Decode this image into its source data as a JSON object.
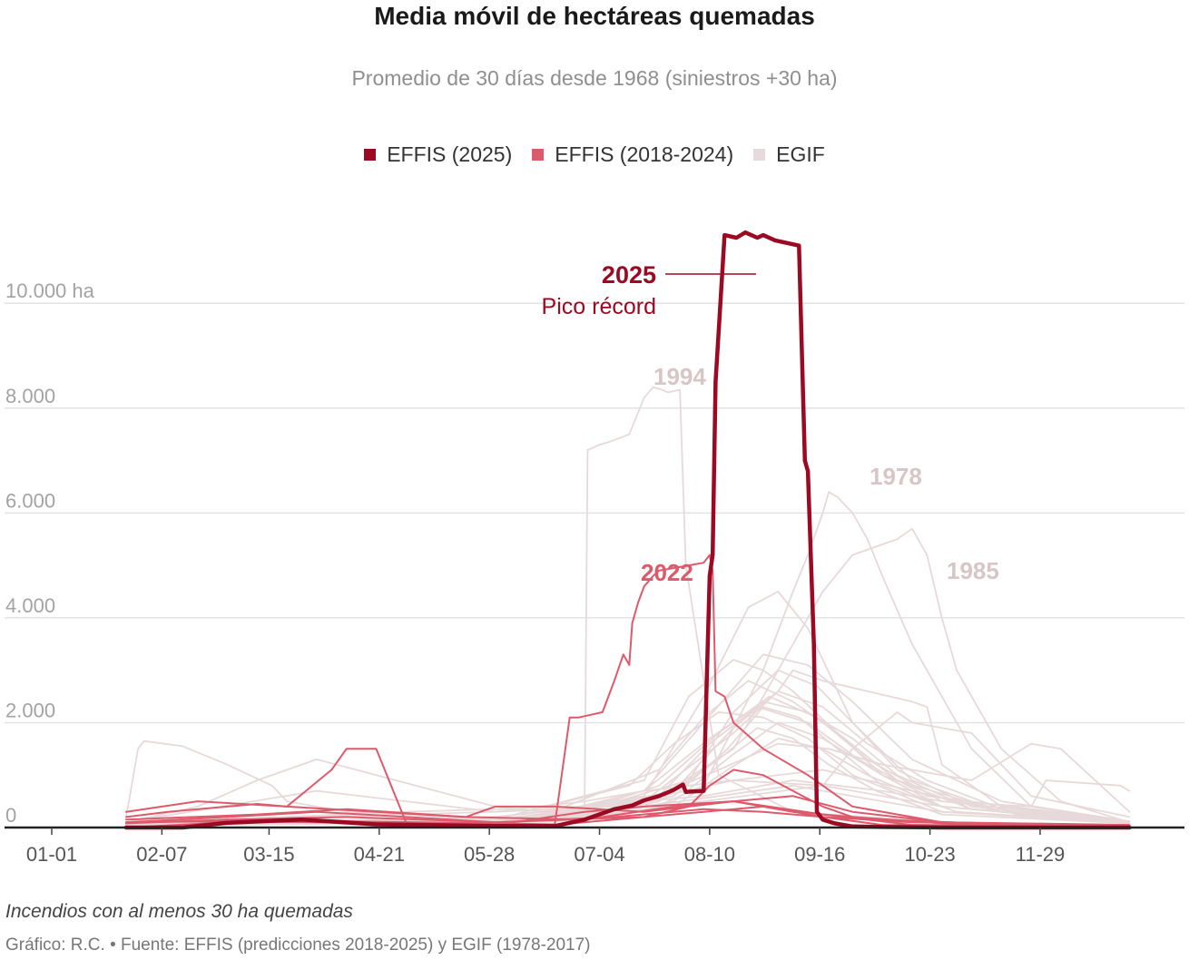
{
  "title": "Media móvil de hectáreas quemadas",
  "subtitle": "Promedio de 30 días desde 1968 (siniestros +30 ha)",
  "legend": [
    {
      "label": "EFFIS (2025)",
      "color": "#9b0a22"
    },
    {
      "label": "EFFIS (2018-2024)",
      "color": "#dd5a6c"
    },
    {
      "label": "EGIF",
      "color": "#e6dada"
    }
  ],
  "footnote": "Incendios con al menos 30 ha quemadas",
  "credit": "Gráfico: R.C. • Fuente: EFFIS (predicciones 2018-2025) y EGIF (1978-2017)",
  "chart_data": {
    "type": "line",
    "x_unit": "day of year",
    "xlim": [
      1,
      366
    ],
    "ylim": [
      0,
      11700
    ],
    "y_ticks": [
      0,
      2000,
      4000,
      6000,
      8000,
      10000
    ],
    "y_tick_labels": [
      "0",
      "2.000",
      "4.000",
      "6.000",
      "8.000",
      "10.000 ha"
    ],
    "x_ticks": [
      1,
      38,
      74,
      111,
      148,
      185,
      222,
      259,
      296,
      333
    ],
    "x_tick_labels": [
      "01-01",
      "02-07",
      "03-15",
      "04-21",
      "05-28",
      "07-04",
      "08-10",
      "09-16",
      "10-23",
      "11-29"
    ],
    "annotations": [
      {
        "key": "a2025",
        "label": "2025",
        "sublabel": "Pico récord",
        "x": 215,
        "y": 11050,
        "color": "#9b0a22"
      },
      {
        "key": "a1994",
        "label": "1994",
        "x": 196,
        "y": 8650,
        "color": "#d8c6c6"
      },
      {
        "key": "a2022",
        "label": "2022",
        "x": 196,
        "y": 4800,
        "color": "#dd5a6c"
      },
      {
        "key": "a1978",
        "label": "1978",
        "x": 268,
        "y": 6700,
        "color": "#d8c6c6"
      },
      {
        "key": "a1985",
        "label": "1985",
        "x": 294,
        "y": 4700,
        "color": "#d8c6c6"
      }
    ],
    "series": [
      {
        "name": "2025",
        "group": "EFFIS (2025)",
        "emphasis": "primary",
        "x": [
          26,
          45,
          60,
          85,
          110,
          150,
          170,
          180,
          190,
          196,
          200,
          205,
          210,
          213,
          214,
          220,
          222,
          223,
          224,
          227,
          231,
          234,
          238,
          240,
          244,
          248,
          252,
          253,
          254,
          255,
          257,
          258,
          260,
          264,
          270,
          280,
          300,
          363
        ],
        "y": [
          0,
          0,
          90,
          150,
          60,
          30,
          30,
          150,
          350,
          420,
          520,
          600,
          720,
          820,
          680,
          700,
          4800,
          5200,
          8500,
          11300,
          11250,
          11350,
          11250,
          11300,
          11200,
          11150,
          11100,
          9000,
          7000,
          6800,
          3500,
          300,
          150,
          80,
          20,
          10,
          0,
          0
        ]
      },
      {
        "name": "2022",
        "group": "EFFIS (2018-2024)",
        "x": [
          26,
          60,
          100,
          150,
          170,
          175,
          178,
          182,
          186,
          190,
          193,
          195,
          196,
          198,
          200,
          203,
          205,
          210,
          215,
          220,
          222,
          223,
          224,
          227,
          230,
          240,
          255,
          270,
          300,
          363
        ],
        "y": [
          0,
          100,
          120,
          80,
          60,
          2100,
          2100,
          2150,
          2200,
          2800,
          3300,
          3100,
          3900,
          4300,
          4600,
          4800,
          4900,
          4950,
          5000,
          5050,
          5200,
          4900,
          2600,
          2500,
          2000,
          1500,
          1000,
          400,
          100,
          50
        ]
      },
      {
        "name": "2018",
        "group": "EFFIS (2018-2024)",
        "x": [
          26,
          60,
          90,
          110,
          140,
          170,
          200,
          215,
          222,
          230,
          240,
          250,
          260,
          270,
          300,
          363
        ],
        "y": [
          100,
          120,
          100,
          80,
          60,
          50,
          200,
          400,
          800,
          1100,
          1000,
          700,
          400,
          200,
          80,
          30
        ]
      },
      {
        "name": "2019",
        "group": "EFFIS (2018-2024)",
        "x": [
          26,
          40,
          60,
          70,
          80,
          95,
          100,
          110,
          120,
          150,
          180,
          200,
          230,
          260,
          290,
          363
        ],
        "y": [
          200,
          300,
          400,
          450,
          400,
          1100,
          1500,
          1500,
          100,
          50,
          300,
          400,
          500,
          250,
          50,
          20
        ]
      },
      {
        "name": "2020",
        "group": "EFFIS (2018-2024)",
        "x": [
          26,
          50,
          80,
          110,
          140,
          150,
          170,
          200,
          230,
          250,
          270,
          300,
          363
        ],
        "y": [
          300,
          500,
          400,
          300,
          200,
          400,
          400,
          300,
          500,
          600,
          300,
          100,
          30
        ]
      },
      {
        "name": "2021",
        "group": "EFFIS (2018-2024)",
        "x": [
          26,
          60,
          90,
          120,
          150,
          200,
          220,
          240,
          260,
          280,
          363
        ],
        "y": [
          100,
          200,
          300,
          200,
          100,
          200,
          300,
          400,
          200,
          50,
          20
        ]
      },
      {
        "name": "2023",
        "group": "EFFIS (2018-2024)",
        "x": [
          26,
          70,
          100,
          140,
          180,
          210,
          230,
          250,
          280,
          320,
          363
        ],
        "y": [
          150,
          250,
          350,
          200,
          150,
          400,
          500,
          300,
          150,
          60,
          20
        ]
      },
      {
        "name": "2024",
        "group": "EFFIS (2018-2024)",
        "x": [
          26,
          60,
          100,
          150,
          190,
          220,
          240,
          260,
          290,
          363
        ],
        "y": [
          80,
          150,
          200,
          100,
          200,
          350,
          300,
          200,
          100,
          30
        ]
      },
      {
        "name": "1994",
        "group": "EGIF",
        "x": [
          26,
          100,
          150,
          180,
          181,
          185,
          188,
          195,
          200,
          203,
          206,
          208,
          212,
          214,
          225,
          250,
          300,
          363
        ],
        "y": [
          50,
          100,
          200,
          400,
          7200,
          7300,
          7350,
          7500,
          8200,
          8400,
          8350,
          8300,
          8350,
          5000,
          1000,
          300,
          100,
          50
        ]
      },
      {
        "name": "1978",
        "group": "EGIF",
        "x": [
          26,
          150,
          200,
          220,
          240,
          250,
          255,
          260,
          262,
          265,
          270,
          275,
          280,
          290,
          300,
          310,
          330,
          363
        ],
        "y": [
          50,
          100,
          300,
          800,
          3000,
          4500,
          5200,
          6000,
          6400,
          6300,
          6000,
          5500,
          4800,
          3500,
          2500,
          1500,
          400,
          100
        ]
      },
      {
        "name": "1985",
        "group": "EGIF",
        "x": [
          26,
          150,
          200,
          230,
          250,
          260,
          270,
          280,
          285,
          290,
          295,
          300,
          305,
          310,
          320,
          340,
          363
        ],
        "y": [
          50,
          100,
          400,
          1500,
          3500,
          4500,
          5200,
          5400,
          5500,
          5700,
          5200,
          4000,
          3000,
          2500,
          1500,
          500,
          100
        ]
      },
      {
        "name": "1975",
        "group": "EGIF",
        "x": [
          26,
          30,
          32,
          45,
          60,
          75,
          80,
          100,
          150,
          200,
          250,
          300,
          363
        ],
        "y": [
          200,
          1500,
          1650,
          1550,
          1200,
          800,
          500,
          300,
          150,
          400,
          800,
          300,
          100
        ]
      },
      {
        "name": "1989",
        "group": "EGIF",
        "x": [
          26,
          50,
          70,
          90,
          110,
          130,
          150,
          180,
          220,
          260,
          300,
          363
        ],
        "y": [
          100,
          400,
          900,
          1300,
          1000,
          700,
          400,
          200,
          500,
          800,
          400,
          100
        ]
      },
      {
        "name": "1981",
        "group": "EGIF",
        "x": [
          26,
          150,
          200,
          220,
          235,
          245,
          255,
          270,
          290,
          320,
          363
        ],
        "y": [
          50,
          100,
          600,
          2500,
          4200,
          4500,
          3800,
          2000,
          900,
          300,
          100
        ]
      },
      {
        "name": "1991",
        "group": "EGIF",
        "x": [
          26,
          150,
          200,
          215,
          230,
          240,
          250,
          265,
          285,
          320,
          363
        ],
        "y": [
          50,
          150,
          900,
          2500,
          3200,
          3000,
          2600,
          1800,
          900,
          300,
          100
        ]
      },
      {
        "name": "1989b",
        "group": "EGIF",
        "x": [
          26,
          150,
          200,
          230,
          245,
          250,
          260,
          275,
          290,
          295,
          300,
          320,
          363
        ],
        "y": [
          50,
          150,
          500,
          1800,
          2600,
          3000,
          2800,
          2600,
          2400,
          2300,
          1200,
          400,
          100
        ]
      },
      {
        "name": "1995",
        "group": "EGIF",
        "x": [
          26,
          150,
          195,
          210,
          225,
          240,
          255,
          270,
          300,
          363
        ],
        "y": [
          50,
          150,
          800,
          1600,
          2200,
          2100,
          1700,
          1000,
          300,
          80
        ]
      },
      {
        "name": "1986",
        "group": "EGIF",
        "x": [
          26,
          160,
          205,
          220,
          235,
          250,
          265,
          280,
          300,
          363
        ],
        "y": [
          50,
          100,
          1100,
          2100,
          2800,
          2400,
          1800,
          1000,
          400,
          80
        ]
      },
      {
        "name": "1987",
        "group": "EGIF",
        "x": [
          26,
          160,
          210,
          230,
          245,
          260,
          275,
          295,
          325,
          363
        ],
        "y": [
          50,
          120,
          700,
          1900,
          2600,
          2300,
          1600,
          900,
          250,
          80
        ]
      },
      {
        "name": "1990",
        "group": "EGIF",
        "x": [
          26,
          170,
          215,
          230,
          245,
          258,
          270,
          285,
          310,
          363
        ],
        "y": [
          60,
          150,
          900,
          2200,
          3000,
          2700,
          2000,
          1100,
          400,
          100
        ]
      },
      {
        "name": "1979",
        "group": "EGIF",
        "x": [
          26,
          160,
          200,
          220,
          240,
          255,
          270,
          290,
          320,
          363
        ],
        "y": [
          50,
          100,
          700,
          2000,
          3300,
          3100,
          2400,
          1300,
          500,
          120
        ]
      },
      {
        "name": "1983",
        "group": "EGIF",
        "x": [
          26,
          170,
          210,
          228,
          240,
          252,
          265,
          280,
          305,
          363
        ],
        "y": [
          60,
          140,
          600,
          1500,
          2300,
          2100,
          1500,
          800,
          300,
          90
        ]
      },
      {
        "name": "1988",
        "group": "EGIF",
        "x": [
          26,
          170,
          205,
          225,
          238,
          250,
          262,
          278,
          300,
          363
        ],
        "y": [
          50,
          120,
          500,
          1300,
          1900,
          1700,
          1200,
          700,
          250,
          80
        ]
      },
      {
        "name": "1993",
        "group": "EGIF",
        "x": [
          26,
          160,
          200,
          222,
          240,
          255,
          270,
          285,
          310,
          363
        ],
        "y": [
          60,
          150,
          700,
          1700,
          2400,
          2200,
          1700,
          1000,
          350,
          100
        ]
      },
      {
        "name": "1996",
        "group": "EGIF",
        "x": [
          26,
          170,
          210,
          228,
          245,
          260,
          275,
          300,
          363
        ],
        "y": [
          40,
          110,
          400,
          1100,
          1700,
          1500,
          1000,
          400,
          100
        ]
      },
      {
        "name": "1998",
        "group": "EGIF",
        "x": [
          26,
          160,
          205,
          222,
          238,
          255,
          272,
          295,
          363
        ],
        "y": [
          50,
          130,
          600,
          1600,
          2300,
          2000,
          1300,
          600,
          120
        ]
      },
      {
        "name": "2000",
        "group": "EGIF",
        "x": [
          26,
          170,
          210,
          230,
          245,
          260,
          280,
          310,
          363
        ],
        "y": [
          50,
          120,
          500,
          1400,
          2000,
          1700,
          1000,
          350,
          100
        ]
      },
      {
        "name": "2005",
        "group": "EGIF",
        "x": [
          26,
          170,
          205,
          225,
          242,
          258,
          275,
          300,
          363
        ],
        "y": [
          60,
          150,
          800,
          1800,
          2500,
          2100,
          1300,
          500,
          120
        ]
      },
      {
        "name": "1980",
        "group": "EGIF",
        "x": [
          26,
          150,
          200,
          225,
          245,
          262,
          280,
          310,
          330,
          340,
          363
        ],
        "y": [
          60,
          200,
          500,
          1100,
          1600,
          1500,
          1200,
          900,
          1600,
          1500,
          300
        ]
      },
      {
        "name": "1997",
        "group": "EGIF",
        "x": [
          26,
          120,
          180,
          220,
          250,
          280,
          300,
          330,
          335,
          360,
          363
        ],
        "y": [
          80,
          300,
          400,
          600,
          900,
          700,
          500,
          400,
          900,
          800,
          700
        ]
      },
      {
        "name": "1982",
        "group": "EGIF",
        "x": [
          26,
          90,
          150,
          190,
          230,
          260,
          290,
          320,
          363
        ],
        "y": [
          100,
          700,
          300,
          400,
          900,
          1100,
          700,
          300,
          100
        ]
      },
      {
        "name": "2017",
        "group": "EGIF",
        "x": [
          26,
          150,
          180,
          200,
          230,
          260,
          270,
          285,
          290,
          310,
          330,
          363
        ],
        "y": [
          100,
          300,
          500,
          700,
          900,
          800,
          1500,
          2200,
          2000,
          1800,
          600,
          200
        ]
      }
    ]
  }
}
